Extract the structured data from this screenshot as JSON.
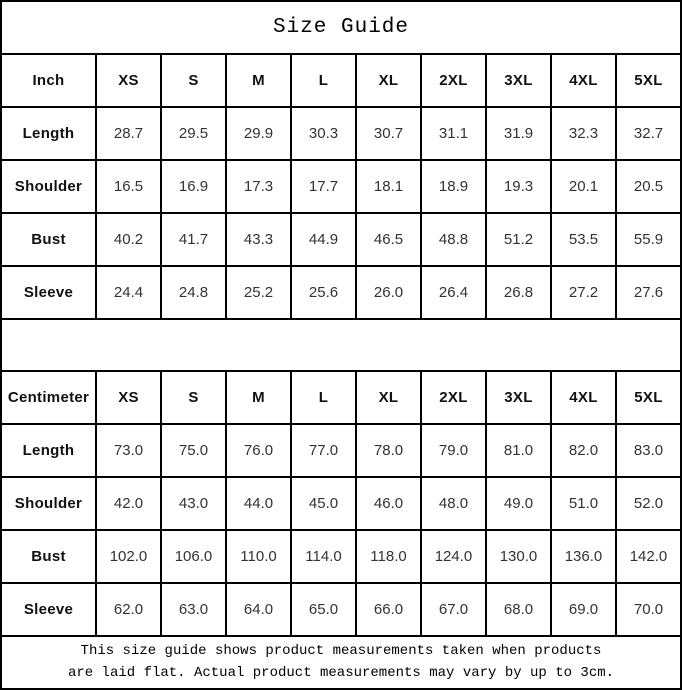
{
  "title": "Size Guide",
  "colors": {
    "border": "#000000",
    "background": "#ffffff",
    "header_text": "#111111",
    "value_text": "#333333"
  },
  "size_columns": [
    "XS",
    "S",
    "M",
    "L",
    "XL",
    "2XL",
    "3XL",
    "4XL",
    "5XL"
  ],
  "tables": [
    {
      "unit_label": "Inch",
      "rows": [
        {
          "label": "Length",
          "values": [
            "28.7",
            "29.5",
            "29.9",
            "30.3",
            "30.7",
            "31.1",
            "31.9",
            "32.3",
            "32.7"
          ]
        },
        {
          "label": "Shoulder",
          "values": [
            "16.5",
            "16.9",
            "17.3",
            "17.7",
            "18.1",
            "18.9",
            "19.3",
            "20.1",
            "20.5"
          ]
        },
        {
          "label": "Bust",
          "values": [
            "40.2",
            "41.7",
            "43.3",
            "44.9",
            "46.5",
            "48.8",
            "51.2",
            "53.5",
            "55.9"
          ]
        },
        {
          "label": "Sleeve",
          "values": [
            "24.4",
            "24.8",
            "25.2",
            "25.6",
            "26.0",
            "26.4",
            "26.8",
            "27.2",
            "27.6"
          ]
        }
      ]
    },
    {
      "unit_label": "Centimeter",
      "rows": [
        {
          "label": "Length",
          "values": [
            "73.0",
            "75.0",
            "76.0",
            "77.0",
            "78.0",
            "79.0",
            "81.0",
            "82.0",
            "83.0"
          ]
        },
        {
          "label": "Shoulder",
          "values": [
            "42.0",
            "43.0",
            "44.0",
            "45.0",
            "46.0",
            "48.0",
            "49.0",
            "51.0",
            "52.0"
          ]
        },
        {
          "label": "Bust",
          "values": [
            "102.0",
            "106.0",
            "110.0",
            "114.0",
            "118.0",
            "124.0",
            "130.0",
            "136.0",
            "142.0"
          ]
        },
        {
          "label": "Sleeve",
          "values": [
            "62.0",
            "63.0",
            "64.0",
            "65.0",
            "66.0",
            "67.0",
            "68.0",
            "69.0",
            "70.0"
          ]
        }
      ]
    }
  ],
  "footer": {
    "lines": [
      "This size guide shows product measurements taken when products",
      "are laid flat. Actual product measurements may vary by up to 3cm."
    ]
  },
  "chart_data": [
    {
      "type": "table",
      "title": "Size Guide (Inch)",
      "columns": [
        "Inch",
        "XS",
        "S",
        "M",
        "L",
        "XL",
        "2XL",
        "3XL",
        "4XL",
        "5XL"
      ],
      "rows": [
        [
          "Length",
          28.7,
          29.5,
          29.9,
          30.3,
          30.7,
          31.1,
          31.9,
          32.3,
          32.7
        ],
        [
          "Shoulder",
          16.5,
          16.9,
          17.3,
          17.7,
          18.1,
          18.9,
          19.3,
          20.1,
          20.5
        ],
        [
          "Bust",
          40.2,
          41.7,
          43.3,
          44.9,
          46.5,
          48.8,
          51.2,
          53.5,
          55.9
        ],
        [
          "Sleeve",
          24.4,
          24.8,
          25.2,
          25.6,
          26.0,
          26.4,
          26.8,
          27.2,
          27.6
        ]
      ]
    },
    {
      "type": "table",
      "title": "Size Guide (Centimeter)",
      "columns": [
        "Centimeter",
        "XS",
        "S",
        "M",
        "L",
        "XL",
        "2XL",
        "3XL",
        "4XL",
        "5XL"
      ],
      "rows": [
        [
          "Length",
          73.0,
          75.0,
          76.0,
          77.0,
          78.0,
          79.0,
          81.0,
          82.0,
          83.0
        ],
        [
          "Shoulder",
          42.0,
          43.0,
          44.0,
          45.0,
          46.0,
          48.0,
          49.0,
          51.0,
          52.0
        ],
        [
          "Bust",
          102.0,
          106.0,
          110.0,
          114.0,
          118.0,
          124.0,
          130.0,
          136.0,
          142.0
        ],
        [
          "Sleeve",
          62.0,
          63.0,
          64.0,
          65.0,
          66.0,
          67.0,
          68.0,
          69.0,
          70.0
        ]
      ]
    }
  ]
}
